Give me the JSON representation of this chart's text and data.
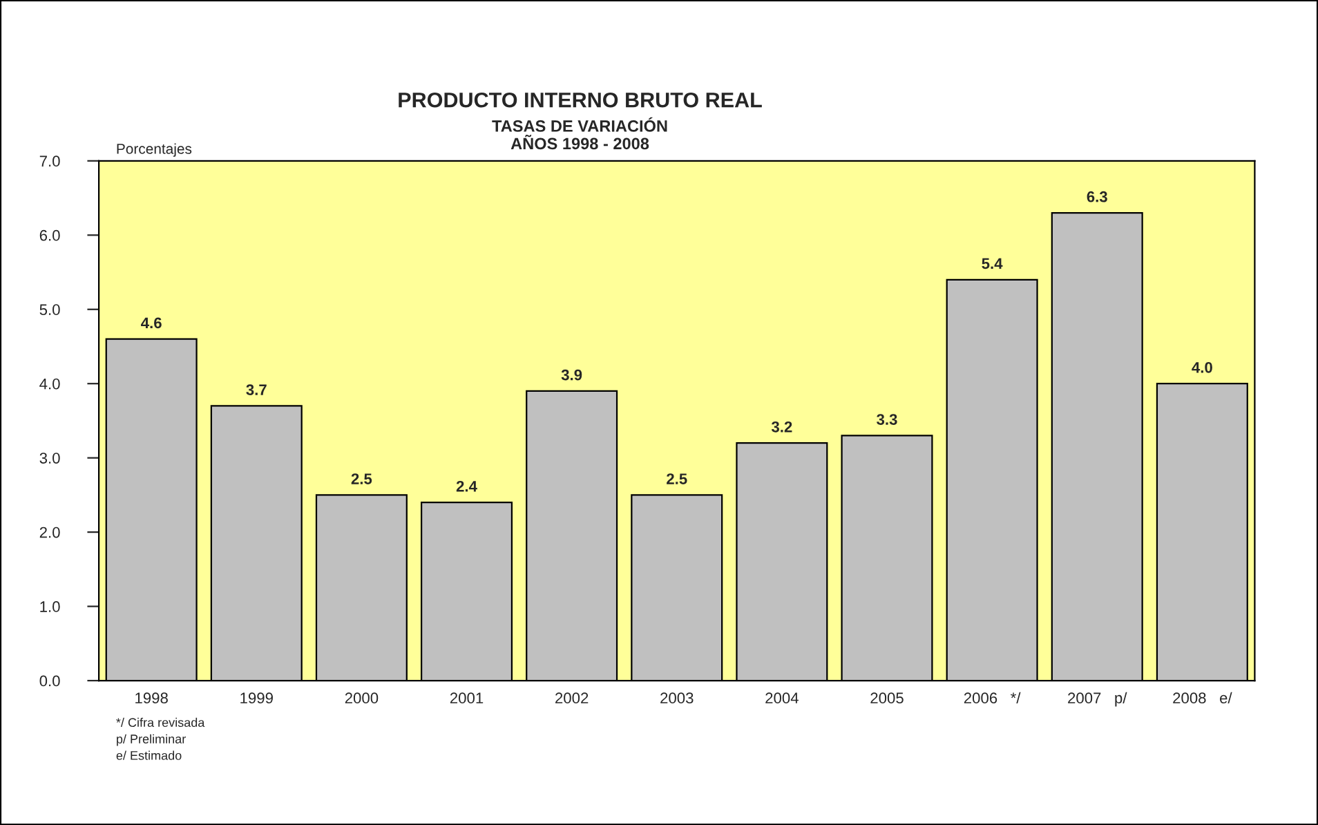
{
  "chart_data": {
    "type": "bar",
    "title": "PRODUCTO INTERNO BRUTO REAL",
    "subtitle": "TASAS DE VARIACIÓN\nAÑOS 1998 - 2008",
    "ylabel": "Porcentajes",
    "categories": [
      "1998",
      "1999",
      "2000",
      "2001",
      "2002",
      "2003",
      "2004",
      "2005",
      "2006   */",
      "2007   p/",
      "2008   e/"
    ],
    "values": [
      4.6,
      3.7,
      2.5,
      2.4,
      3.9,
      2.5,
      3.2,
      3.3,
      5.4,
      6.3,
      4.0
    ],
    "value_labels": [
      "4.6",
      "3.7",
      "2.5",
      "2.4",
      "3.9",
      "2.5",
      "3.2",
      "3.3",
      "5.4",
      "6.3",
      "4.0"
    ],
    "color": "#c0c0c0",
    "ylim": [
      0,
      7
    ],
    "yticks": [
      {
        "value": 0,
        "label": "0.0"
      },
      {
        "value": 1,
        "label": "1.0"
      },
      {
        "value": 2,
        "label": "2.0"
      },
      {
        "value": 3,
        "label": "3.0"
      },
      {
        "value": 4,
        "label": "4.0"
      },
      {
        "value": 5,
        "label": "5.0"
      },
      {
        "value": 6,
        "label": "6.0"
      },
      {
        "value": 7,
        "label": "7.0"
      }
    ],
    "grid": false,
    "legend": false,
    "annotations": [
      "*/ Cifra revisada",
      "p/ Preliminar",
      "e/ Estimado"
    ]
  }
}
